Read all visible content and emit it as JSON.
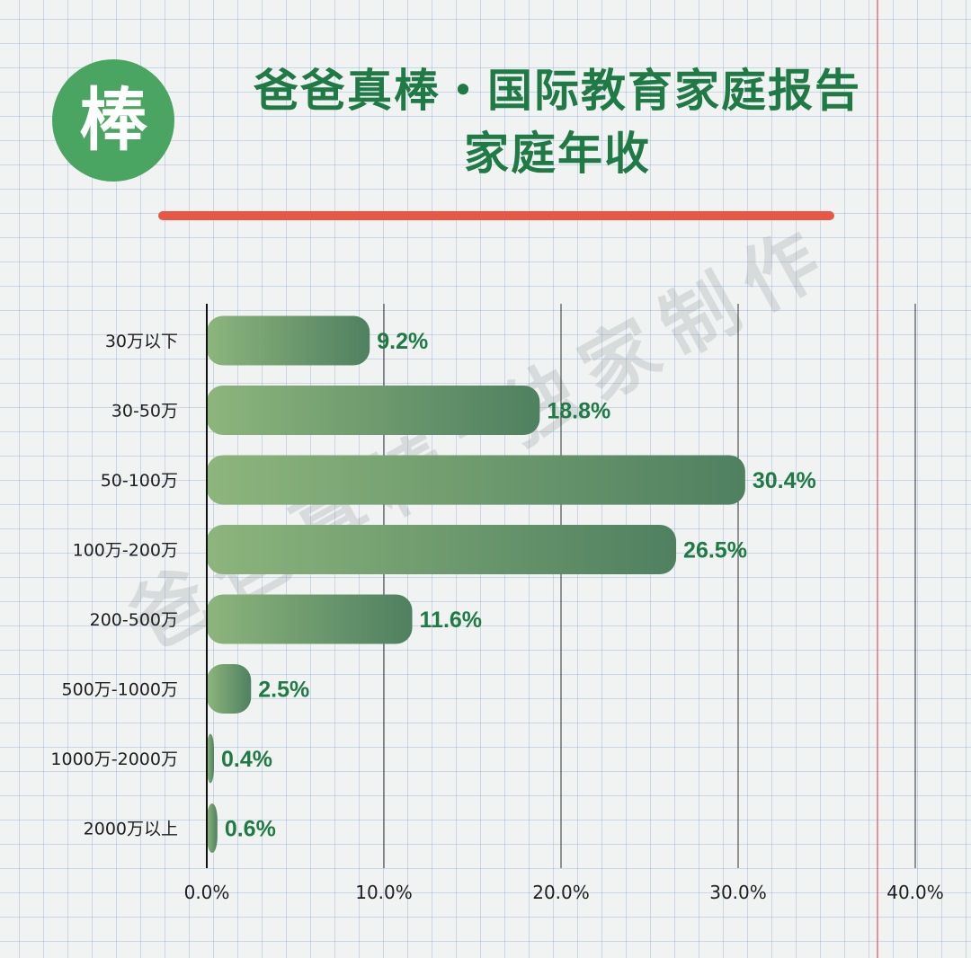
{
  "header": {
    "logo_char": "棒",
    "title_line1": "爸爸真棒・国际教育家庭报告",
    "title_line2": "家庭年收"
  },
  "watermark": "爸爸真棒\"独家制作",
  "colors": {
    "title": "#1f7a45",
    "bar_start": "#8db57c",
    "bar_end": "#4f8060",
    "value_label": "#1f7a45",
    "rule": "#ea5545",
    "logo_bg": "#4aa562"
  },
  "chart_data": {
    "type": "bar",
    "orientation": "horizontal",
    "categories": [
      "30万以下",
      "30-50万",
      "50-100万",
      "100万-200万",
      "200-500万",
      "500万-1000万",
      "1000万-2000万",
      "2000万以上"
    ],
    "values": [
      9.2,
      18.8,
      30.4,
      26.5,
      11.6,
      2.5,
      0.4,
      0.6
    ],
    "value_labels": [
      "9.2%",
      "18.8%",
      "30.4%",
      "26.5%",
      "11.6%",
      "2.5%",
      "0.4%",
      "0.6%"
    ],
    "xlim": [
      0,
      40
    ],
    "xticks": [
      0,
      10,
      20,
      30,
      40
    ],
    "xtick_labels": [
      "0.0%",
      "10.0%",
      "20.0%",
      "30.0%",
      "40.0%"
    ],
    "grid": "vertical",
    "legend": "none"
  }
}
